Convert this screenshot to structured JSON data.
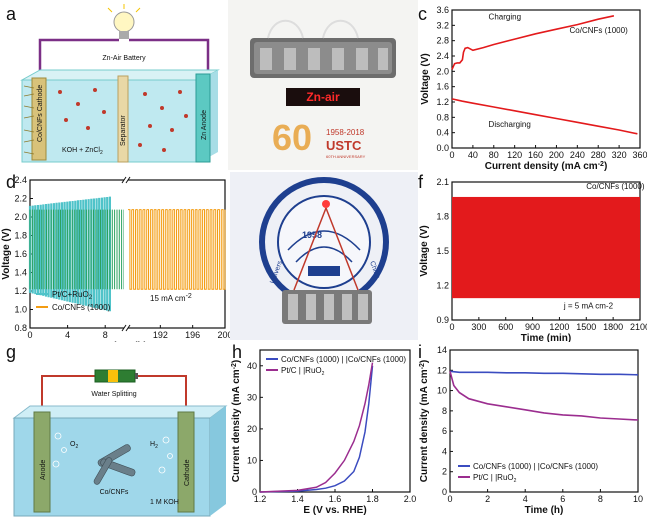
{
  "panel_labels": {
    "a": "a",
    "b": "b",
    "c": "c",
    "d": "d",
    "e": "e",
    "f": "f",
    "g": "g",
    "h": "h",
    "i": "i"
  },
  "schematic_a": {
    "title": "Zn-Air Battery",
    "cathode": "Co/CNFs Cathode",
    "separator": "Separator",
    "anode": "Zn Anode",
    "electrolyte_main": "KOH + ZnCl",
    "electrolyte_sub": "2"
  },
  "photo_b": {
    "display": "Zn-air",
    "logo_years": "1958-2018",
    "logo_name": "USTC",
    "logo_sub": "60TH ANNIVERSARY"
  },
  "photo_e": {
    "seal_year": "1958",
    "seal_left": "Univers",
    "seal_right": "China"
  },
  "schematic_g": {
    "title": "Water Splitting",
    "anode": "Anode",
    "cathode": "Cathode",
    "o2": "O",
    "o2_sub": "2",
    "h2": "H",
    "h2_sub": "2",
    "catalyst": "Co/CNFs",
    "electrolyte": "1 M KOH"
  },
  "colors": {
    "red": "#e31a1c",
    "green": "#2ca25f",
    "orange": "#f39c12",
    "cyan": "#4fc3c9",
    "blue": "#3b4cc0",
    "purple": "#9b2d8f"
  },
  "chart_data": [
    {
      "id": "c",
      "type": "line",
      "xlabel": "Current density (mA cm",
      "xlabel_sup": "-2",
      "xlabel_end": ")",
      "ylabel": "Voltage (V)",
      "xlim": [
        0,
        360
      ],
      "ylim": [
        0.0,
        3.6
      ],
      "xticks": [
        0,
        40,
        80,
        120,
        160,
        200,
        240,
        280,
        320,
        360
      ],
      "yticks": [
        0.0,
        0.4,
        0.8,
        1.2,
        1.6,
        2.0,
        2.4,
        2.8,
        3.2,
        3.6
      ],
      "ytick_labels": [
        "0.0",
        "0.4",
        "0.8",
        "1.2",
        "1.6",
        "2.0",
        "2.4",
        "2.8",
        "3.2",
        "3.6"
      ],
      "annotations": {
        "charging": "Charging",
        "discharging": "Discharging",
        "material": "Co/CNFs (1000)"
      },
      "series": [
        {
          "name": "Charging",
          "x": [
            0,
            5,
            10,
            15,
            20,
            22,
            25,
            30,
            40,
            60,
            80,
            120,
            160,
            200,
            240,
            280,
            310
          ],
          "y": [
            2.05,
            2.2,
            2.22,
            2.22,
            2.3,
            2.5,
            2.6,
            2.62,
            2.55,
            2.62,
            2.7,
            2.84,
            2.98,
            3.1,
            3.22,
            3.36,
            3.45
          ]
        },
        {
          "name": "Discharging",
          "x": [
            0,
            20,
            40,
            80,
            120,
            160,
            200,
            240,
            280,
            320,
            355
          ],
          "y": [
            1.28,
            1.22,
            1.17,
            1.07,
            0.97,
            0.87,
            0.77,
            0.67,
            0.57,
            0.47,
            0.37
          ]
        }
      ]
    },
    {
      "id": "d",
      "type": "line",
      "xlabel": "Time (h)",
      "ylabel": "Voltage (V)",
      "ylim": [
        0.8,
        2.4
      ],
      "yticks": [
        0.8,
        1.0,
        1.2,
        1.4,
        1.6,
        1.8,
        2.0,
        2.2,
        2.4
      ],
      "ytick_labels": [
        "0.8",
        "1.0",
        "1.2",
        "1.4",
        "1.6",
        "1.8",
        "2.0",
        "2.2",
        "2.4"
      ],
      "xticks_left": [
        "0",
        "4",
        "8"
      ],
      "xticks_right": [
        "192",
        "196",
        "200"
      ],
      "xlim_left": [
        0,
        10
      ],
      "xlim_right": [
        188,
        200
      ],
      "legend": [
        "Pt/C+RuO",
        "Co/CNFs (1000)"
      ],
      "legend_sub": "2",
      "annotation": "15 mA cm",
      "annotation_sup": "-2",
      "series": [
        {
          "name": "Pt/C+RuO2",
          "charge_start": 2.12,
          "charge_end": 2.22,
          "discharge_start": 1.18,
          "discharge_end": 0.98,
          "t_end": 8.5
        },
        {
          "name": "Co/CNFs (1000)",
          "charge": 2.08,
          "discharge": 1.22
        }
      ]
    },
    {
      "id": "f",
      "type": "area",
      "xlabel": "Time (min)",
      "ylabel": "Voltage (V)",
      "xlim": [
        0,
        2100
      ],
      "ylim": [
        0.9,
        2.1
      ],
      "xticks": [
        0,
        300,
        600,
        900,
        1200,
        1500,
        1800,
        2100
      ],
      "yticks": [
        0.9,
        1.2,
        1.5,
        1.8,
        2.1
      ],
      "ytick_labels": [
        "0.9",
        "1.2",
        "1.5",
        "1.8",
        "2.1"
      ],
      "annotation_top": "Co/CNFs (1000)",
      "annotation_bottom": "j = 5 mA cm-2",
      "band_upper": 1.97,
      "band_lower": 1.09
    },
    {
      "id": "h",
      "type": "line",
      "xlabel": "E (V vs. RHE)",
      "ylabel": "Current density (mA cm",
      "ylabel_sup": "-2",
      "ylabel_end": ")",
      "xlim": [
        1.2,
        2.0
      ],
      "ylim": [
        0,
        45
      ],
      "xticks": [
        1.2,
        1.4,
        1.6,
        1.8,
        2.0
      ],
      "xtick_labels": [
        "1.2",
        "1.4",
        "1.6",
        "1.8",
        "2.0"
      ],
      "yticks": [
        0,
        10,
        20,
        30,
        40
      ],
      "legend": [
        "Co/CNFs (1000) | |Co/CNFs (1000)",
        "Pt/C | |RuO"
      ],
      "legend_sub": "2",
      "series": [
        {
          "name": "Co/CNFs (1000) | |Co/CNFs (1000)",
          "x": [
            1.2,
            1.4,
            1.5,
            1.55,
            1.6,
            1.65,
            1.7,
            1.73,
            1.76,
            1.78,
            1.8
          ],
          "y": [
            0,
            0.3,
            0.8,
            1.2,
            2,
            3.5,
            6.5,
            11,
            19,
            28,
            40
          ]
        },
        {
          "name": "Pt/C | |RuO2",
          "x": [
            1.2,
            1.4,
            1.5,
            1.55,
            1.6,
            1.65,
            1.7,
            1.73,
            1.76,
            1.78,
            1.8
          ],
          "y": [
            0,
            0.5,
            1.5,
            3,
            6,
            10,
            16,
            21,
            28,
            34,
            41
          ]
        }
      ]
    },
    {
      "id": "i",
      "type": "line",
      "xlabel": "Time (h)",
      "ylabel": "Current density (mA cm",
      "ylabel_sup": "-2",
      "ylabel_end": ")",
      "xlim": [
        0,
        10
      ],
      "ylim": [
        0,
        14
      ],
      "xticks": [
        0,
        2,
        4,
        6,
        8,
        10
      ],
      "yticks": [
        0,
        2,
        4,
        6,
        8,
        10,
        12,
        14
      ],
      "legend": [
        "Co/CNFs (1000) | |Co/CNFs (1000)",
        "Pt/C | |RuO"
      ],
      "legend_sub": "2",
      "series": [
        {
          "name": "Co/CNFs (1000) | |Co/CNFs (1000)",
          "x": [
            0,
            0.5,
            1,
            2,
            3,
            4,
            5,
            6,
            7,
            8,
            9,
            10
          ],
          "y": [
            11.9,
            11.8,
            11.8,
            11.8,
            11.75,
            11.75,
            11.7,
            11.7,
            11.65,
            11.6,
            11.6,
            11.55
          ]
        },
        {
          "name": "Pt/C | |RuO2",
          "x": [
            0,
            0.2,
            0.5,
            1,
            2,
            3,
            4,
            5,
            6,
            7,
            8,
            9,
            10
          ],
          "y": [
            11.9,
            10.5,
            9.8,
            9.2,
            8.7,
            8.4,
            8.1,
            7.8,
            7.6,
            7.5,
            7.3,
            7.2,
            7.1
          ]
        }
      ]
    }
  ]
}
